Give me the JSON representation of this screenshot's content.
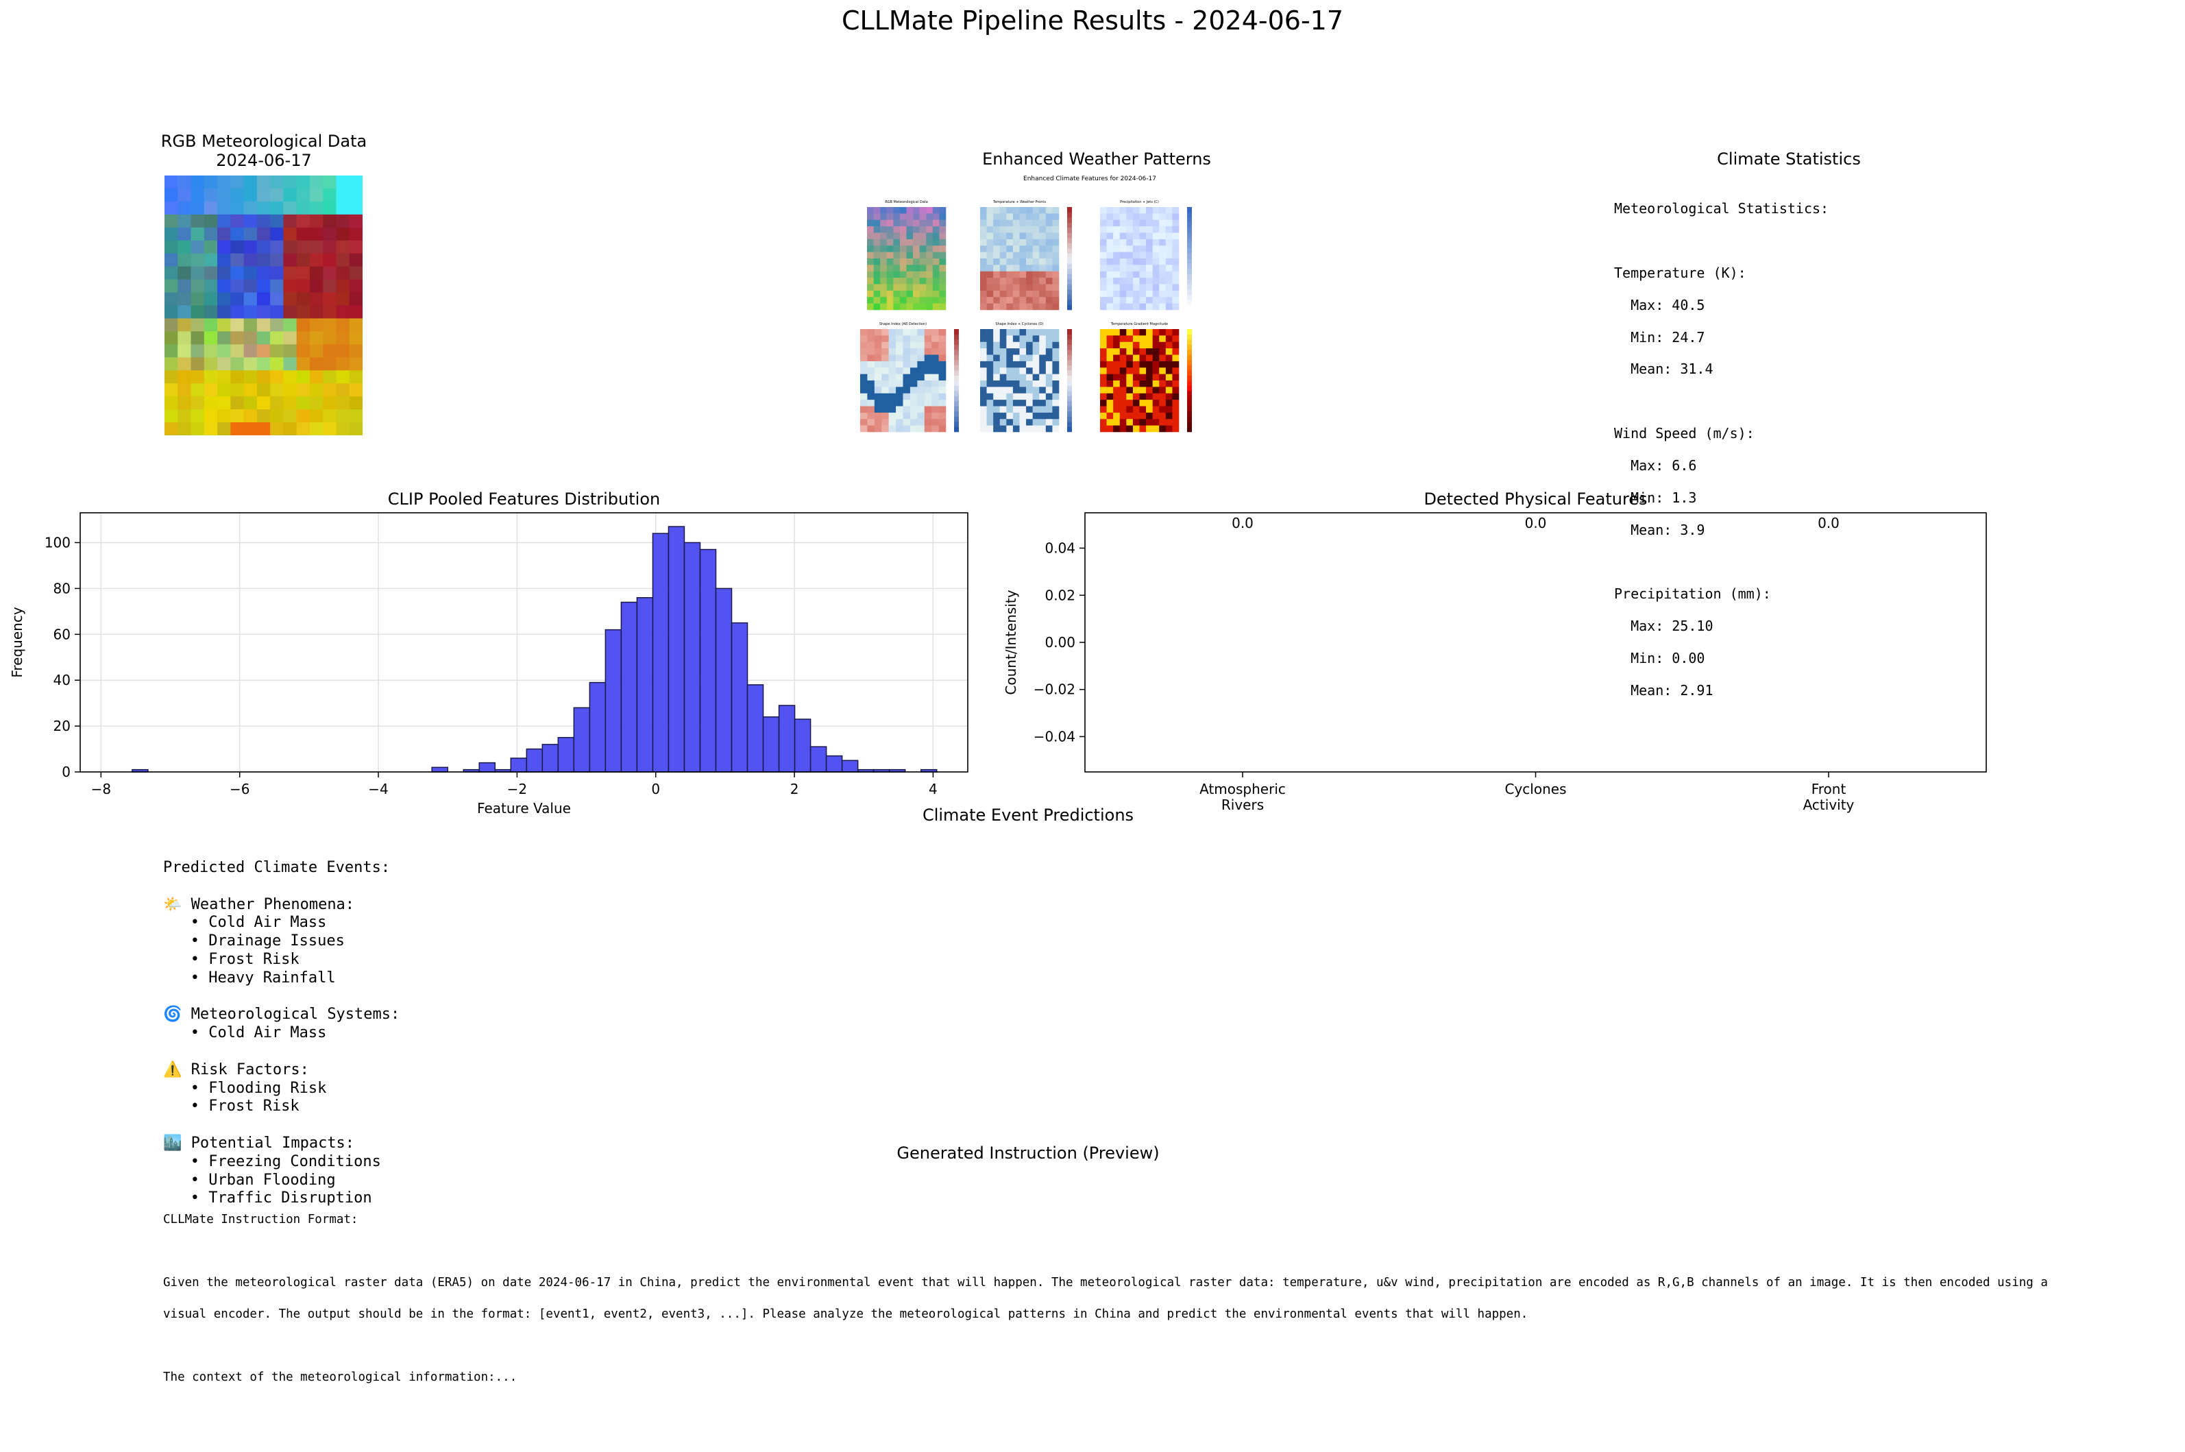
{
  "figure": {
    "suptitle": "CLLMate Pipeline Results - 2024-06-17"
  },
  "rgb_panel": {
    "title_line1": "RGB Meteorological Data",
    "title_line2": "2024-06-17"
  },
  "enhanced_panel": {
    "title": "Enhanced Weather Patterns",
    "inner_title": "Enhanced Climate Features for 2024-06-17",
    "subplots": [
      "RGB Meteorological Data",
      "Temperature + Weather Fronts",
      "Precipitation + Jets (C)",
      "Shape Index (AR Detection)",
      "Shape Index + Cyclones (D)",
      "Temperature Gradient Magnitude"
    ]
  },
  "stats_panel": {
    "title": "Climate Statistics",
    "heading": "Meteorological Statistics:",
    "groups": [
      {
        "label": "Temperature (K):",
        "max": "Max: 40.5",
        "min": "Min: 24.7",
        "mean": "Mean: 31.4"
      },
      {
        "label": "Wind Speed (m/s):",
        "max": "Max: 6.6",
        "min": "Min: 1.3",
        "mean": "Mean: 3.9"
      },
      {
        "label": "Precipitation (mm):",
        "max": "Max: 25.10",
        "min": "Min: 0.00",
        "mean": "Mean: 2.91"
      }
    ]
  },
  "predictions": {
    "title": "Climate Event Predictions",
    "heading": "Predicted Climate Events:",
    "sections": [
      {
        "icon": "🌤️",
        "label": "Weather Phenomena:",
        "items": [
          "Cold Air Mass",
          "Drainage Issues",
          "Frost Risk",
          "Heavy Rainfall"
        ]
      },
      {
        "icon": "🌀",
        "label": "Meteorological Systems:",
        "items": [
          "Cold Air Mass"
        ]
      },
      {
        "icon": "⚠️",
        "label": "Risk Factors:",
        "items": [
          "Flooding Risk",
          "Frost Risk"
        ]
      },
      {
        "icon": "🏙️",
        "label": "Potential Impacts:",
        "items": [
          "Freezing Conditions",
          "Urban Flooding",
          "Traffic Disruption"
        ]
      }
    ]
  },
  "instruction": {
    "title": "Generated Instruction (Preview)",
    "format_label": "CLLMate Instruction Format:",
    "line1": "Given the meteorological raster data (ERA5) on date 2024-06-17 in China, predict the environmental event that will happen. The meteorological raster data: temperature, u&v wind, precipitation are encoded as R,G,B channels of an image. It is then encoded using a",
    "line2": "visual encoder. The output should be in the format: [event1, event2, event3, ...]. Please analyze the meteorological patterns in China and predict the environmental events that will happen.",
    "line3": "The context of the meteorological information:..."
  },
  "colors": {
    "hist_fill": "#4a4af0",
    "hist_edge": "#1a1a4a",
    "grid": "#e0e0e0"
  },
  "chart_data": [
    {
      "type": "bar",
      "title": "CLIP Pooled Features Distribution",
      "xlabel": "Feature Value",
      "ylabel": "Frequency",
      "xlim": [
        -8.3,
        4.5
      ],
      "ylim": [
        0,
        113
      ],
      "xticks": [
        -8,
        -6,
        -4,
        -2,
        0,
        2,
        4
      ],
      "yticks": [
        0,
        20,
        40,
        60,
        80,
        100
      ],
      "grid": true,
      "bin_width": 0.2275,
      "bin_start": -7.55,
      "counts": [
        1,
        0,
        0,
        0,
        0,
        0,
        0,
        0,
        0,
        0,
        0,
        0,
        0,
        0,
        0,
        0,
        0,
        0,
        0,
        2,
        0,
        1,
        4,
        1,
        6,
        10,
        12,
        15,
        28,
        39,
        62,
        74,
        76,
        104,
        107,
        100,
        97,
        80,
        65,
        38,
        24,
        29,
        23,
        11,
        7,
        5,
        1,
        1,
        1,
        0,
        1
      ]
    },
    {
      "type": "bar",
      "title": "Detected Physical Features",
      "xlabel": "",
      "ylabel": "Count/Intensity",
      "categories": [
        "Atmospheric\nRivers",
        "Cyclones",
        "Front\nActivity"
      ],
      "values": [
        0.0,
        0.0,
        0.0
      ],
      "value_labels": [
        "0.0",
        "0.0",
        "0.0"
      ],
      "ylim": [
        -0.055,
        0.055
      ],
      "yticks": [
        -0.04,
        -0.02,
        0.0,
        0.02,
        0.04
      ],
      "ytick_labels": [
        "−0.04",
        "−0.02",
        "0.00",
        "0.02",
        "0.04"
      ],
      "grid": false
    }
  ]
}
